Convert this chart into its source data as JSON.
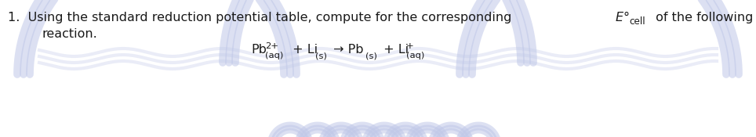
{
  "background_color": "#ffffff",
  "text_color": "#1a1a1a",
  "fig_width": 9.64,
  "fig_height": 1.75,
  "dpi": 100,
  "font_size": 11.5,
  "watermark_color": "#c0c8e8",
  "watermark_alpha": 0.55,
  "line1_prefix": "1.  Using the standard reduction potential table, compute for the corresponding ",
  "line1_Ecell_italic": "E",
  "line1_degree": "°",
  "line1_cell": "cell",
  "line1_suffix": " of the following",
  "line2": "reaction.",
  "line2_indent": 0.055
}
